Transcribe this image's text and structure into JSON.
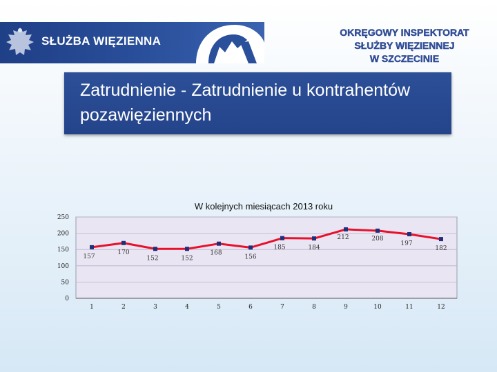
{
  "header": {
    "org_name": "SŁUŻBA WIĘZIENNA",
    "office_lines": [
      "OKRĘGOWY INSPEKTORAT",
      "SŁUŻBY WIĘZIENNEJ",
      "W SZCZECINIE"
    ],
    "icons": [
      "eagle-emblem-icon",
      "sw-logo-icon"
    ],
    "colors": {
      "banner": "#24448a",
      "office_text": "#3355a6"
    }
  },
  "slide": {
    "title": "Zatrudnienie - Zatrudnienie u kontrahentów pozawięziennych"
  },
  "chart_data": {
    "type": "line",
    "title": "W kolejnych miesiącach 2013 roku",
    "xlabel": "",
    "ylabel": "",
    "categories": [
      "1",
      "2",
      "3",
      "4",
      "5",
      "6",
      "7",
      "8",
      "9",
      "10",
      "11",
      "12"
    ],
    "series": [
      {
        "values": [
          157,
          170,
          152,
          152,
          168,
          156,
          185,
          184,
          212,
          208,
          197,
          182
        ],
        "color": "#e8102a",
        "marker_color": "#1f2f7a"
      }
    ],
    "yticks": [
      0,
      50,
      100,
      150,
      200,
      250
    ],
    "ylim": [
      0,
      250
    ],
    "grid": true,
    "legend": false,
    "plot_background": "#eae5f3"
  }
}
